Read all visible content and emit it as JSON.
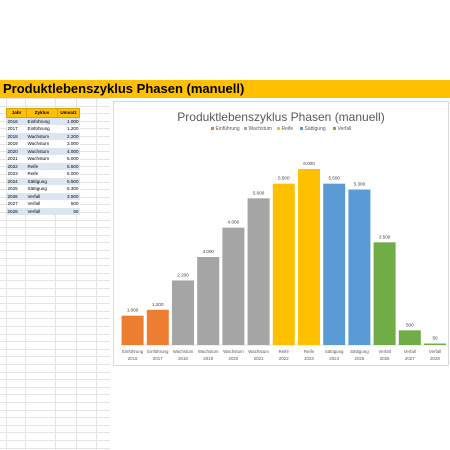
{
  "banner": {
    "title": "Produktlebenszyklus Phasen (manuell)"
  },
  "table": {
    "headers": [
      "Jahr",
      "Zyklus",
      "Umsatz"
    ],
    "rows": [
      [
        "2016",
        "Einführung",
        "1.000"
      ],
      [
        "2017",
        "Einführung",
        "1.200"
      ],
      [
        "2018",
        "Wachstum",
        "2.200"
      ],
      [
        "2019",
        "Wachstum",
        "3.000"
      ],
      [
        "2020",
        "Wachstum",
        "4.000"
      ],
      [
        "2021",
        "Wachstum",
        "5.000"
      ],
      [
        "2022",
        "Reife",
        "5.500"
      ],
      [
        "2023",
        "Reife",
        "6.000"
      ],
      [
        "2024",
        "Sättigung",
        "5.500"
      ],
      [
        "2025",
        "Sättigung",
        "5.300"
      ],
      [
        "2026",
        "Verfall",
        "3.500"
      ],
      [
        "2027",
        "Verfall",
        "500"
      ],
      [
        "2028",
        "Verfall",
        "50"
      ]
    ]
  },
  "chart_data": {
    "type": "bar",
    "title": "Produktlebenszyklus Phasen (manuell)",
    "categories": [
      [
        "Einführung",
        "2016"
      ],
      [
        "Einführung",
        "2017"
      ],
      [
        "Wachstum",
        "2018"
      ],
      [
        "Wachstum",
        "2019"
      ],
      [
        "Wachstum",
        "2020"
      ],
      [
        "Wachstum",
        "2021"
      ],
      [
        "Reife",
        "2022"
      ],
      [
        "Reife",
        "2023"
      ],
      [
        "Sättigung",
        "2024"
      ],
      [
        "Sättigung",
        "2025"
      ],
      [
        "Verfall",
        "2026"
      ],
      [
        "Verfall",
        "2027"
      ],
      [
        "Verfall",
        "2028"
      ]
    ],
    "values": [
      1000,
      1200,
      2200,
      3000,
      4000,
      5000,
      5500,
      6000,
      5500,
      5300,
      3500,
      500,
      50
    ],
    "data_labels": [
      "1.000",
      "1.200",
      "2.200",
      "3.000",
      "4.000",
      "5.000",
      "5.500",
      "6.000",
      "5.500",
      "5.300",
      "3.500",
      "500",
      "50"
    ],
    "bar_phases": [
      "Einführung",
      "Einführung",
      "Wachstum",
      "Wachstum",
      "Wachstum",
      "Wachstum",
      "Reife",
      "Reife",
      "Sättigung",
      "Sättigung",
      "Verfall",
      "Verfall",
      "Verfall"
    ],
    "legend": [
      {
        "name": "Einführung",
        "color": "#ed7d31"
      },
      {
        "name": "Wachstum",
        "color": "#a5a5a5"
      },
      {
        "name": "Reife",
        "color": "#ffc000"
      },
      {
        "name": "Sättigung",
        "color": "#5b9bd5"
      },
      {
        "name": "Verfall",
        "color": "#70ad47"
      }
    ],
    "legend_position": "top",
    "ylim": [
      0,
      6000
    ],
    "grid": false
  }
}
